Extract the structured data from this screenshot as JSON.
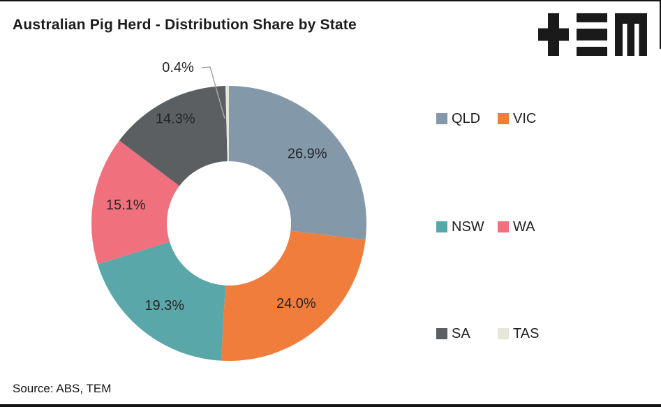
{
  "title": {
    "text": "Australian Pig Herd - Distribution Share by State"
  },
  "logo": {
    "name": "TEM",
    "color": "#1a1a1a"
  },
  "source": {
    "text": "Source: ABS, TEM"
  },
  "styles": {
    "leader_line_color": "#A6A6A6",
    "data_label_color": "#262626",
    "frame_color": "#141414",
    "background": "#ffffff"
  },
  "chart_data": {
    "type": "pie",
    "subtype": "donut",
    "title": "Australian Pig Herd - Distribution Share by State",
    "categories": [
      "QLD",
      "VIC",
      "NSW",
      "WA",
      "SA",
      "TAS"
    ],
    "values": [
      26.9,
      24.0,
      19.3,
      15.1,
      14.3,
      0.4
    ],
    "data_labels": [
      "26.9%",
      "24.0%",
      "19.3%",
      "15.1%",
      "14.3%",
      "0.4%"
    ],
    "colors": [
      "#8398A8",
      "#F07D3C",
      "#5AA7AA",
      "#F1707D",
      "#5C5F62",
      "#E6E6DA"
    ],
    "start_angle_deg": 0,
    "direction": "clockwise",
    "hole_ratio": 0.45,
    "grid": false,
    "legend_position": "right",
    "legend_layout_rows": [
      [
        "QLD",
        "VIC"
      ],
      [
        "NSW",
        "WA"
      ],
      [
        "SA",
        "TAS"
      ]
    ],
    "callout": {
      "category": "TAS",
      "label": "0.4%"
    }
  }
}
